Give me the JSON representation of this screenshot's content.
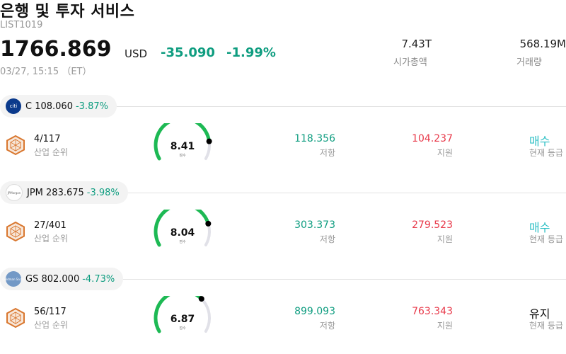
{
  "header": {
    "title": "은행 및 투자 서비스",
    "code": "LIST1019",
    "price": "1766.869",
    "currency": "USD",
    "change": "-35.090",
    "change_pct": "-1.99%",
    "timestamp": "03/27, 15:15 （ET）",
    "market_cap_value": "7.43T",
    "market_cap_label": "시가총액",
    "volume_value": "568.19M",
    "volume_label": "거래량"
  },
  "colors": {
    "positive_change": "#0f9d80",
    "support": "#e8394a",
    "buy": "#2bbfc4",
    "gauge_green": "#1db954",
    "gauge_track": "#e1e1e8"
  },
  "items": [
    {
      "ticker_line": "C 108.060",
      "pct": "-3.87%",
      "logo_icon": "citi-logo-icon",
      "logo_text": "citi",
      "rank": "4/117",
      "rank_label": "산업 순위",
      "score": "8.41",
      "score_fraction": 0.841,
      "score_label": "점수",
      "resistance": "118.356",
      "resistance_label": "저항",
      "support": "104.237",
      "support_label": "지원",
      "grade": "매수",
      "grade_label": "현재 등급"
    },
    {
      "ticker_line": "JPM 283.675",
      "pct": "-3.98%",
      "logo_icon": "jpmorgan-logo-icon",
      "logo_text": "JPMorgan",
      "rank": "27/401",
      "rank_label": "산업 순위",
      "score": "8.04",
      "score_fraction": 0.804,
      "score_label": "점수",
      "resistance": "303.373",
      "resistance_label": "저항",
      "support": "279.523",
      "support_label": "지원",
      "grade": "매수",
      "grade_label": "현재 등급"
    },
    {
      "ticker_line": "GS 802.000",
      "pct": "-4.73%",
      "logo_icon": "goldman-sachs-logo-icon",
      "logo_text": "Goldman Sachs",
      "rank": "56/117",
      "rank_label": "산업 순위",
      "score": "6.87",
      "score_fraction": 0.687,
      "score_label": "점수",
      "resistance": "899.093",
      "resistance_label": "저항",
      "support": "763.343",
      "support_label": "지원",
      "grade": "유지",
      "grade_label": "현재 등급"
    }
  ]
}
